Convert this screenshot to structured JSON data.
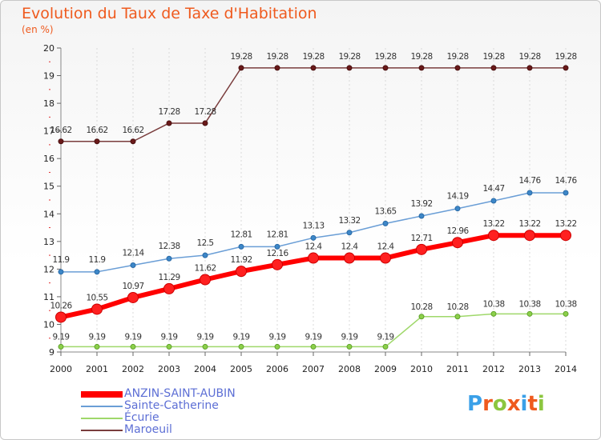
{
  "title": "Evolution du Taux de Taxe d'Habitation",
  "subtitle": "(en %)",
  "brand": {
    "text": "Proxiti",
    "letter_colors": [
      "#3aa0e8",
      "#ef5a1e",
      "#8cc63f",
      "#ef5a1e",
      "#3aa0e8",
      "#ef5a1e",
      "#8cc63f"
    ]
  },
  "chart_data": {
    "type": "line",
    "title": "Evolution du Taux de Taxe d'Habitation",
    "ylabel": "(en %)",
    "xlabel": "",
    "x": [
      "2000",
      "2001",
      "2002",
      "2003",
      "2004",
      "2005",
      "2006",
      "2007",
      "2008",
      "2009",
      "2010",
      "2011",
      "2012",
      "2013",
      "2014"
    ],
    "ylim": [
      9,
      20
    ],
    "yticks": [
      "9",
      "10",
      "11",
      "12",
      "13",
      "14",
      "15",
      "16",
      "17",
      "18",
      "19",
      "20"
    ],
    "grid": "vertical dashed",
    "legend_position": "bottom-left",
    "series": [
      {
        "name": "ANZIN-SAINT-AUBIN",
        "color": "#ff0000",
        "values": [
          10.26,
          10.55,
          10.97,
          11.29,
          11.62,
          11.92,
          12.16,
          12.4,
          12.4,
          12.4,
          12.71,
          12.96,
          13.22,
          13.22,
          13.22
        ],
        "labels": [
          "10.26",
          "10.55",
          "10.97",
          "11.29",
          "11.62",
          "11.92",
          "12.16",
          "12.4",
          "12.4",
          "12.4",
          "12.71",
          "12.96",
          "13.22",
          "13.22",
          "13.22"
        ]
      },
      {
        "name": "Sainte-Catherine",
        "color": "#6a9ed6",
        "values": [
          11.9,
          11.9,
          12.14,
          12.38,
          12.5,
          12.81,
          12.81,
          13.13,
          13.32,
          13.65,
          13.92,
          14.19,
          14.47,
          14.76,
          14.76
        ],
        "labels": [
          "11.9",
          "11.9",
          "12.14",
          "12.38",
          "12.5",
          "12.81",
          "12.81",
          "13.13",
          "13.32",
          "13.65",
          "13.92",
          "14.19",
          "14.47",
          "14.76",
          "14.76"
        ]
      },
      {
        "name": "Écurie",
        "color": "#9fd86a",
        "values": [
          9.19,
          9.19,
          9.19,
          9.19,
          9.19,
          9.19,
          9.19,
          9.19,
          9.19,
          9.19,
          10.28,
          10.28,
          10.38,
          10.38,
          10.38
        ],
        "labels": [
          "9.19",
          "9.19",
          "9.19",
          "9.19",
          "9.19",
          "9.19",
          "9.19",
          "9.19",
          "9.19",
          "9.19",
          "10.28",
          "10.28",
          "10.38",
          "10.38",
          "10.38"
        ]
      },
      {
        "name": "Maroeuil",
        "color": "#7a3d3d",
        "values": [
          16.62,
          16.62,
          16.62,
          17.28,
          17.28,
          19.28,
          19.28,
          19.28,
          19.28,
          19.28,
          19.28,
          19.28,
          19.28,
          19.28,
          19.28
        ],
        "labels": [
          "16.62",
          "16.62",
          "16.62",
          "17.28",
          "17.28",
          "19.28",
          "19.28",
          "19.28",
          "19.28",
          "19.28",
          "19.28",
          "19.28",
          "19.28",
          "19.28",
          "19.28"
        ]
      }
    ]
  }
}
